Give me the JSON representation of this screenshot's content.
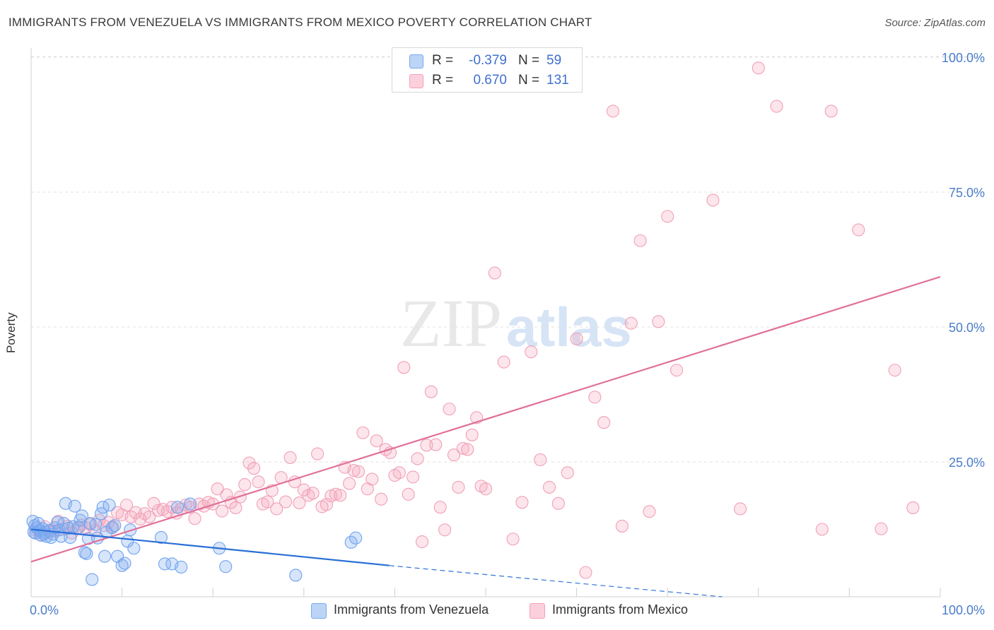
{
  "header": {
    "title": "IMMIGRANTS FROM VENEZUELA VS IMMIGRANTS FROM MEXICO POVERTY CORRELATION CHART",
    "source": "Source: ZipAtlas.com"
  },
  "watermark": {
    "zip": "ZIP",
    "atlas": "atlas"
  },
  "legend": {
    "r_label": "R =",
    "n_label": "N =",
    "rows": [
      {
        "r": "-0.379",
        "n": "59",
        "color": "#7aaaf0"
      },
      {
        "r": "0.670",
        "n": "131",
        "color": "#f5a0b8"
      }
    ]
  },
  "chart_data": {
    "type": "scatter",
    "title": "IMMIGRANTS FROM VENEZUELA VS IMMIGRANTS FROM MEXICO POVERTY CORRELATION CHART",
    "ylabel": "Poverty",
    "xlabel": "",
    "xlim": [
      0,
      100
    ],
    "ylim": [
      0,
      105
    ],
    "x_tick_labels": [
      "0.0%",
      "100.0%"
    ],
    "y_ticks": [
      25,
      50,
      75,
      100
    ],
    "y_tick_labels": [
      "25.0%",
      "50.0%",
      "75.0%",
      "100.0%"
    ],
    "grid": true,
    "legend_position": "top-center",
    "series": [
      {
        "name": "Immigrants from Venezuela",
        "color": "#6fa3ef",
        "line_color": "#2a6fd6",
        "trend": {
          "x0": 0,
          "y0": 12.5,
          "x1": 39.4,
          "y1": 5.8,
          "dash_to_x": 76,
          "dash_to_y": 0
        },
        "points": [
          [
            0.2,
            14.0
          ],
          [
            0.3,
            12.0
          ],
          [
            0.4,
            13.2
          ],
          [
            0.5,
            11.8
          ],
          [
            0.6,
            12.8
          ],
          [
            0.8,
            13.6
          ],
          [
            1.0,
            12.2
          ],
          [
            1.1,
            11.4
          ],
          [
            1.3,
            12.6
          ],
          [
            1.5,
            12.0
          ],
          [
            1.7,
            11.2
          ],
          [
            2.0,
            12.3
          ],
          [
            2.2,
            11.0
          ],
          [
            2.4,
            11.6
          ],
          [
            2.6,
            12.8
          ],
          [
            2.9,
            13.8
          ],
          [
            3.1,
            12.4
          ],
          [
            3.3,
            11.2
          ],
          [
            3.6,
            13.6
          ],
          [
            3.8,
            17.3
          ],
          [
            4.1,
            12.7
          ],
          [
            4.3,
            11.0
          ],
          [
            4.6,
            13.0
          ],
          [
            4.8,
            16.8
          ],
          [
            5.2,
            12.8
          ],
          [
            5.4,
            14.2
          ],
          [
            5.6,
            15.0
          ],
          [
            5.9,
            8.2
          ],
          [
            6.1,
            8.0
          ],
          [
            6.3,
            10.8
          ],
          [
            6.5,
            13.6
          ],
          [
            6.7,
            3.2
          ],
          [
            7.1,
            13.4
          ],
          [
            7.3,
            10.9
          ],
          [
            7.7,
            15.4
          ],
          [
            7.9,
            16.6
          ],
          [
            8.1,
            7.5
          ],
          [
            8.3,
            12.0
          ],
          [
            8.6,
            17.0
          ],
          [
            8.9,
            12.8
          ],
          [
            9.2,
            13.2
          ],
          [
            9.5,
            7.5
          ],
          [
            10.0,
            5.8
          ],
          [
            10.3,
            6.2
          ],
          [
            10.6,
            10.3
          ],
          [
            10.9,
            12.4
          ],
          [
            11.3,
            9.0
          ],
          [
            14.3,
            11.0
          ],
          [
            14.7,
            6.1
          ],
          [
            15.5,
            6.1
          ],
          [
            16.1,
            16.6
          ],
          [
            16.5,
            5.5
          ],
          [
            17.5,
            17.2
          ],
          [
            20.7,
            9.0
          ],
          [
            21.4,
            5.6
          ],
          [
            29.1,
            4.0
          ],
          [
            35.2,
            10.1
          ],
          [
            35.7,
            10.9
          ],
          [
            1.4,
            11.6
          ]
        ]
      },
      {
        "name": "Immigrants from Mexico",
        "color": "#f6a8be",
        "line_color": "#e0709a",
        "trend": {
          "x0": 0,
          "y0": 6.5,
          "x1": 100,
          "y1": 59.3
        },
        "points": [
          [
            0.5,
            12.4
          ],
          [
            1.0,
            11.5
          ],
          [
            1.5,
            13.0
          ],
          [
            2.0,
            12.0
          ],
          [
            2.5,
            12.2
          ],
          [
            3.0,
            14.0
          ],
          [
            3.5,
            12.5
          ],
          [
            4.0,
            13.1
          ],
          [
            4.5,
            11.8
          ],
          [
            5.0,
            12.6
          ],
          [
            5.5,
            13.3
          ],
          [
            6.0,
            12.8
          ],
          [
            6.5,
            13.4
          ],
          [
            7.0,
            12.2
          ],
          [
            7.5,
            14.2
          ],
          [
            8.0,
            13.2
          ],
          [
            8.5,
            13.8
          ],
          [
            9.0,
            13.0
          ],
          [
            9.5,
            15.6
          ],
          [
            10.0,
            15.2
          ],
          [
            10.5,
            17.0
          ],
          [
            11.0,
            14.8
          ],
          [
            11.5,
            15.6
          ],
          [
            12.0,
            14.4
          ],
          [
            12.5,
            15.4
          ],
          [
            13.0,
            14.8
          ],
          [
            13.5,
            17.3
          ],
          [
            14.0,
            16.0
          ],
          [
            14.5,
            16.2
          ],
          [
            15.0,
            15.8
          ],
          [
            15.5,
            16.6
          ],
          [
            16.0,
            15.5
          ],
          [
            16.5,
            16.3
          ],
          [
            17.0,
            17.0
          ],
          [
            17.5,
            16.6
          ],
          [
            18.0,
            14.5
          ],
          [
            18.5,
            17.2
          ],
          [
            19.0,
            16.8
          ],
          [
            19.5,
            17.5
          ],
          [
            20.0,
            17.2
          ],
          [
            20.5,
            20.0
          ],
          [
            21.0,
            15.9
          ],
          [
            21.5,
            18.9
          ],
          [
            22.0,
            17.5
          ],
          [
            22.5,
            16.5
          ],
          [
            23.0,
            18.5
          ],
          [
            23.5,
            20.8
          ],
          [
            24.0,
            24.8
          ],
          [
            24.5,
            23.8
          ],
          [
            25.0,
            21.3
          ],
          [
            25.5,
            17.2
          ],
          [
            26.0,
            17.6
          ],
          [
            26.5,
            19.7
          ],
          [
            27.0,
            16.3
          ],
          [
            27.5,
            22.1
          ],
          [
            28.0,
            17.6
          ],
          [
            28.5,
            25.8
          ],
          [
            29.0,
            21.3
          ],
          [
            29.5,
            17.4
          ],
          [
            30.0,
            19.8
          ],
          [
            30.5,
            18.8
          ],
          [
            31.0,
            19.2
          ],
          [
            31.5,
            26.5
          ],
          [
            32.0,
            16.7
          ],
          [
            32.5,
            17.1
          ],
          [
            33.0,
            18.7
          ],
          [
            33.5,
            19.0
          ],
          [
            34.0,
            18.8
          ],
          [
            34.5,
            24.0
          ],
          [
            35.0,
            21.0
          ],
          [
            35.5,
            23.4
          ],
          [
            36.0,
            23.2
          ],
          [
            36.5,
            30.4
          ],
          [
            37.0,
            20.0
          ],
          [
            37.5,
            21.8
          ],
          [
            38.0,
            28.9
          ],
          [
            38.5,
            18.1
          ],
          [
            39.0,
            27.3
          ],
          [
            39.5,
            26.7
          ],
          [
            40.0,
            22.5
          ],
          [
            40.5,
            23.0
          ],
          [
            41.0,
            42.5
          ],
          [
            41.5,
            19.0
          ],
          [
            42.0,
            22.2
          ],
          [
            42.5,
            25.6
          ],
          [
            43.0,
            10.2
          ],
          [
            43.5,
            28.1
          ],
          [
            44.0,
            38.0
          ],
          [
            44.5,
            28.2
          ],
          [
            45.0,
            16.6
          ],
          [
            45.5,
            12.4
          ],
          [
            46.0,
            34.8
          ],
          [
            46.5,
            26.3
          ],
          [
            47.0,
            20.3
          ],
          [
            47.5,
            27.5
          ],
          [
            48.0,
            27.3
          ],
          [
            48.5,
            30.0
          ],
          [
            49.0,
            33.2
          ],
          [
            49.5,
            20.5
          ],
          [
            50.0,
            20.0
          ],
          [
            51.0,
            60.0
          ],
          [
            52.0,
            43.5
          ],
          [
            53.0,
            10.7
          ],
          [
            54.0,
            17.5
          ],
          [
            55.0,
            45.4
          ],
          [
            56.0,
            25.4
          ],
          [
            57.0,
            20.3
          ],
          [
            58.0,
            17.3
          ],
          [
            59.0,
            23.0
          ],
          [
            60.0,
            47.8
          ],
          [
            61.0,
            4.5
          ],
          [
            62.0,
            37.0
          ],
          [
            63.0,
            32.3
          ],
          [
            64.0,
            90.0
          ],
          [
            65.0,
            13.1
          ],
          [
            66.0,
            50.7
          ],
          [
            67.0,
            66.0
          ],
          [
            68.0,
            15.8
          ],
          [
            69.0,
            51.0
          ],
          [
            70.0,
            70.5
          ],
          [
            71.0,
            42.0
          ],
          [
            75.0,
            73.5
          ],
          [
            78.0,
            16.3
          ],
          [
            80.0,
            98.0
          ],
          [
            82.0,
            90.9
          ],
          [
            87.0,
            12.5
          ],
          [
            88.0,
            90.0
          ],
          [
            91.0,
            68.0
          ],
          [
            93.5,
            12.6
          ],
          [
            95.0,
            42.0
          ],
          [
            97.0,
            16.5
          ]
        ]
      }
    ]
  }
}
